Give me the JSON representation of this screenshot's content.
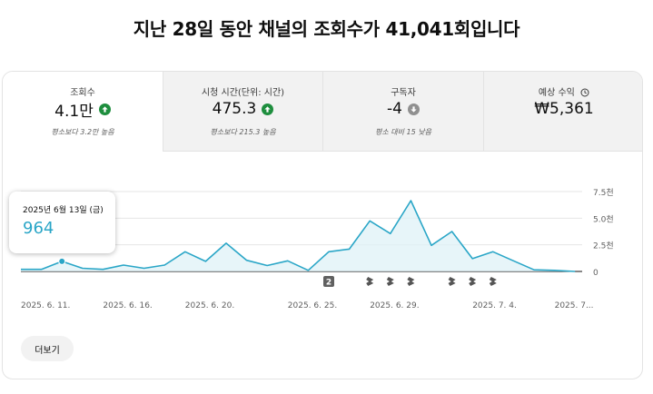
{
  "headline": "지난 28일 동안 채널의 조회수가 41,041회입니다",
  "metrics": [
    {
      "label": "조회수",
      "value": "4.1만",
      "trend": "up",
      "trend_icon": "arrow-up-icon",
      "sub": "평소보다 3.2만 높음"
    },
    {
      "label": "시청 시간(단위: 시간)",
      "value": "475.3",
      "trend": "up",
      "trend_icon": "arrow-up-icon",
      "sub": "평소보다 215.3 높음"
    },
    {
      "label": "구독자",
      "value": "-4",
      "trend": "down",
      "trend_icon": "arrow-down-icon",
      "sub": "평소 대비 15 낮음"
    },
    {
      "label": "예상 수익",
      "value": "₩5,361",
      "trend": "none",
      "label_icon": "clock-icon",
      "sub": ""
    }
  ],
  "tooltip": {
    "date": "2025년 6월 13일 (금)",
    "value": "964"
  },
  "more_button": "더보기",
  "colors": {
    "accent": "#2aa6c7",
    "up": "#1e8e3e",
    "down": "#909090",
    "fill": "#dff1f7"
  },
  "chart_data": {
    "type": "area",
    "ylim": [
      0,
      7500
    ],
    "y_ticks": [
      "7.5천",
      "5.0천",
      "2.5천",
      "0"
    ],
    "x_tick_labels": [
      "2025. 6. 11.",
      "2025. 6. 16.",
      "2025. 6. 20.",
      "2025. 6. 25.",
      "2025. 6. 29.",
      "2025. 7. 4.",
      "2025. 7..."
    ],
    "x_tick_days": [
      0,
      4,
      8,
      13,
      17,
      22,
      26
    ],
    "series": [
      {
        "values": [
          200,
          200,
          950,
          300,
          200,
          600,
          300,
          600,
          1850,
          950,
          2650,
          1050,
          550,
          1000,
          100,
          1850,
          2100,
          4750,
          3550,
          6650,
          2450,
          3750,
          1200,
          1850,
          1000,
          150,
          100,
          0
        ],
        "highlight_index": 2
      }
    ],
    "markers": [
      {
        "day": 15,
        "type": "badge",
        "label": "2"
      },
      {
        "day": 17,
        "type": "shorts-icon"
      },
      {
        "day": 18,
        "type": "shorts-icon"
      },
      {
        "day": 19,
        "type": "shorts-icon"
      },
      {
        "day": 21,
        "type": "shorts-icon"
      },
      {
        "day": 22,
        "type": "shorts-icon"
      },
      {
        "day": 23,
        "type": "shorts-icon"
      }
    ],
    "grid": true
  }
}
